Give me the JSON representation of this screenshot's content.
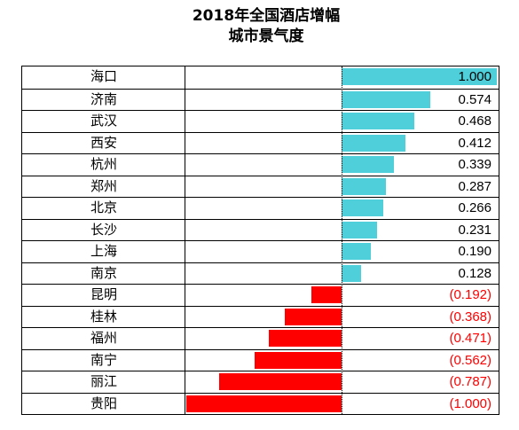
{
  "chart_data": {
    "type": "bar",
    "orientation": "horizontal",
    "title": [
      "2018年全国酒店增幅",
      "城市景气度"
    ],
    "categories": [
      "海口",
      "济南",
      "武汉",
      "西安",
      "杭州",
      "郑州",
      "北京",
      "长沙",
      "上海",
      "南京",
      "昆明",
      "桂林",
      "福州",
      "南宁",
      "丽江",
      "贵阳"
    ],
    "values": [
      1.0,
      0.574,
      0.468,
      0.412,
      0.339,
      0.287,
      0.266,
      0.231,
      0.19,
      0.128,
      -0.192,
      -0.368,
      -0.471,
      -0.562,
      -0.787,
      -1.0
    ],
    "value_labels": [
      "1.000",
      "0.574",
      "0.468",
      "0.412",
      "0.339",
      "0.287",
      "0.266",
      "0.231",
      "0.190",
      "0.128",
      "(0.192)",
      "(0.368)",
      "(0.471)",
      "(0.562)",
      "(0.787)",
      "(1.000)"
    ],
    "xlim": [
      -1,
      1
    ],
    "positive_color": "#4ECFD9",
    "negative_color": "#FF0000",
    "negative_label_color": "#FF0000",
    "positive_label_color": "#000000",
    "grid": true
  }
}
